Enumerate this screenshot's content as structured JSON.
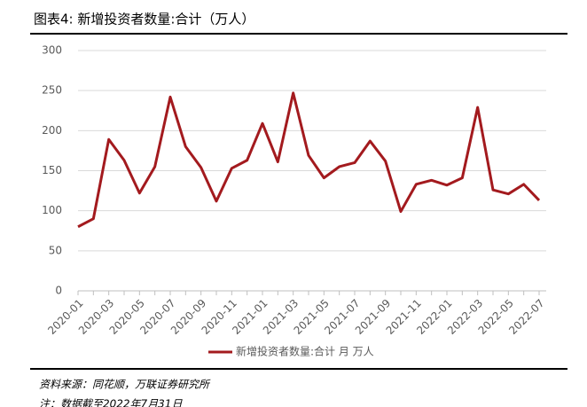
{
  "chart_data": {
    "type": "line",
    "title": "图表4:  新增投资者数量:合计（万人）",
    "categories": [
      "2020-01",
      null,
      "2020-03",
      null,
      "2020-05",
      null,
      "2020-07",
      null,
      "2020-09",
      null,
      "2020-11",
      null,
      "2021-01",
      null,
      "2021-03",
      null,
      "2021-05",
      null,
      "2021-07",
      null,
      "2021-09",
      null,
      "2021-11",
      null,
      "2022-01",
      null,
      "2022-03",
      null,
      "2022-05",
      null,
      "2022-07"
    ],
    "series": [
      {
        "name": "新增投资者数量:合计  月  万人",
        "color": "#a31a1e",
        "values": [
          80,
          90,
          189,
          163,
          122,
          155,
          242,
          180,
          154,
          112,
          153,
          163,
          209,
          161,
          247,
          169,
          141,
          155,
          160,
          187,
          162,
          99,
          133,
          138,
          132,
          141,
          229,
          126,
          121,
          133,
          113
        ]
      }
    ],
    "ylim": [
      0,
      300
    ],
    "yticks": [
      0,
      50,
      100,
      150,
      200,
      250,
      300
    ],
    "grid": true,
    "source": "资料来源：同花顺，万联证券研究所",
    "note": "注：数据截至2022年7月31日"
  }
}
